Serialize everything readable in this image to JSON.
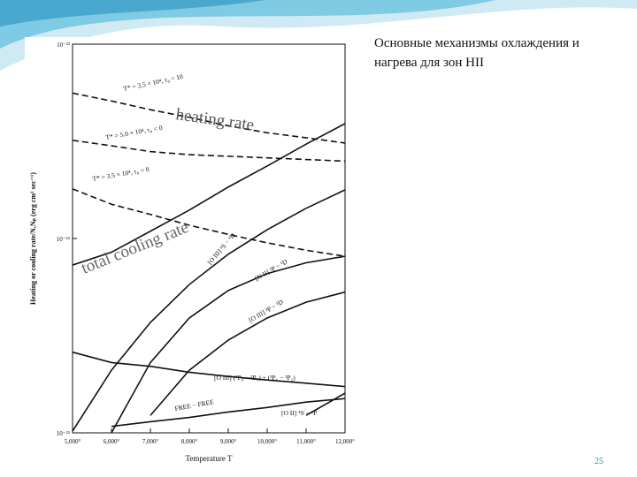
{
  "slide": {
    "title": "Основные механизмы охлаждения и нагрева для зон HII",
    "page_number": "25"
  },
  "chart_data": {
    "type": "line",
    "x_label": "Temperature T",
    "y_label": "Heating or cooling rate/NₑNₚ (erg cm³ sec⁻¹)",
    "annotations": [
      "heating rate",
      "total cooling rate"
    ],
    "x": [
      5000,
      6000,
      7000,
      8000,
      9000,
      10000,
      11000,
      12000
    ],
    "xlim": [
      5000,
      12000
    ],
    "xticks": [
      {
        "value": 5000,
        "label": "5,000°"
      },
      {
        "value": 6000,
        "label": "6,000°"
      },
      {
        "value": 7000,
        "label": "7,000°"
      },
      {
        "value": 8000,
        "label": "8,000°"
      },
      {
        "value": 9000,
        "label": "9,000°"
      },
      {
        "value": 10000,
        "label": "10,000°"
      },
      {
        "value": 11000,
        "label": "11,000°"
      },
      {
        "value": 12000,
        "label": "12,000°"
      }
    ],
    "ylim": [
      1e-25,
      1e-23
    ],
    "yticks": [
      {
        "value": 1e-25,
        "label": "10⁻²⁵"
      },
      {
        "value": 1e-24,
        "label": "10⁻²⁴"
      },
      {
        "value": 1e-23,
        "label": "10⁻²³"
      }
    ],
    "y_scale": "log",
    "color": "#111111",
    "series": [
      {
        "name": "T* = 3.5 × 10⁴, τ₀ = 10",
        "style": "dashed",
        "values": [
          5.6e-24,
          5.1e-24,
          4.6e-24,
          4.2e-24,
          3.8e-24,
          3.5e-24,
          3.3e-24,
          3.1e-24
        ]
      },
      {
        "name": "T* = 5.0 × 10⁴, τ₀ = 0",
        "style": "dashed",
        "values": [
          3.2e-24,
          3e-24,
          2.8e-24,
          2.7e-24,
          2.65e-24,
          2.6e-24,
          2.55e-24,
          2.5e-24
        ]
      },
      {
        "name": "T* = 3.5 × 10⁴, τ₀ = 0",
        "style": "dashed",
        "values": [
          1.8e-24,
          1.5e-24,
          1.33e-24,
          1.17e-24,
          1.05e-24,
          9.5e-25,
          8.7e-25,
          8.1e-25
        ]
      },
      {
        "name": "total cooling",
        "style": "solid",
        "values": [
          7.3e-25,
          8.5e-25,
          1.09e-24,
          1.4e-24,
          1.84e-24,
          2.36e-24,
          3.06e-24,
          3.9e-24
        ]
      },
      {
        "name": "[O III] ¹S − ¹D",
        "style": "solid",
        "values": [
          1.02e-25,
          2.1e-25,
          3.7e-25,
          5.8e-25,
          8.3e-25,
          1.11e-24,
          1.43e-24,
          1.78e-24
        ]
      },
      {
        "name": "[N II] ³P − ¹D",
        "style": "solid",
        "values": [
          null,
          1e-25,
          2.3e-25,
          3.9e-25,
          5.4e-25,
          6.6e-25,
          7.5e-25,
          8.1e-25
        ]
      },
      {
        "name": "[O III] ³P − ¹D",
        "style": "solid",
        "values": [
          null,
          null,
          1.23e-25,
          2.1e-25,
          3e-25,
          3.9e-25,
          4.7e-25,
          5.3e-25
        ]
      },
      {
        "name": "[O III] (³P₀ − ³P₁) + (³P₁ − ³P₂)",
        "style": "solid",
        "values": [
          2.6e-25,
          2.3e-25,
          2.2e-25,
          2.05e-25,
          1.95e-25,
          1.87e-25,
          1.8e-25,
          1.73e-25
        ]
      },
      {
        "name": "FREE − FREE",
        "style": "solid",
        "values": [
          null,
          1.08e-25,
          1.14e-25,
          1.2e-25,
          1.28e-25,
          1.35e-25,
          1.44e-25,
          1.5e-25
        ]
      },
      {
        "name": "[O II] ⁴S − ²P",
        "style": "solid",
        "values": [
          null,
          null,
          null,
          null,
          null,
          null,
          1.23e-25,
          1.6e-25
        ]
      }
    ]
  }
}
